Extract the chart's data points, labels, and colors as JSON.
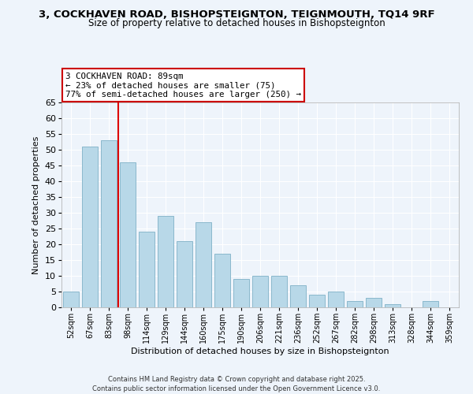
{
  "title_line1": "3, COCKHAVEN ROAD, BISHOPSTEIGNTON, TEIGNMOUTH, TQ14 9RF",
  "title_line2": "Size of property relative to detached houses in Bishopsteignton",
  "xlabel": "Distribution of detached houses by size in Bishopsteignton",
  "ylabel": "Number of detached properties",
  "categories": [
    "52sqm",
    "67sqm",
    "83sqm",
    "98sqm",
    "114sqm",
    "129sqm",
    "144sqm",
    "160sqm",
    "175sqm",
    "190sqm",
    "206sqm",
    "221sqm",
    "236sqm",
    "252sqm",
    "267sqm",
    "282sqm",
    "298sqm",
    "313sqm",
    "328sqm",
    "344sqm",
    "359sqm"
  ],
  "values": [
    5,
    51,
    53,
    46,
    24,
    29,
    21,
    27,
    17,
    9,
    10,
    10,
    7,
    4,
    5,
    2,
    3,
    1,
    0,
    2,
    0
  ],
  "bar_color": "#b8d8e8",
  "bar_edge_color": "#8ab8cc",
  "highlight_bar_index": 2,
  "ylim": [
    0,
    65
  ],
  "yticks": [
    0,
    5,
    10,
    15,
    20,
    25,
    30,
    35,
    40,
    45,
    50,
    55,
    60,
    65
  ],
  "annotation_title": "3 COCKHAVEN ROAD: 89sqm",
  "annotation_line1": "← 23% of detached houses are smaller (75)",
  "annotation_line2": "77% of semi-detached houses are larger (250) →",
  "annotation_box_color": "#ffffff",
  "annotation_box_edge": "#cc0000",
  "red_line_color": "#dd0000",
  "footnote1": "Contains HM Land Registry data © Crown copyright and database right 2025.",
  "footnote2": "Contains public sector information licensed under the Open Government Licence v3.0.",
  "bg_color": "#eef4fb",
  "plot_bg_color": "#eef4fb",
  "grid_color": "#ffffff",
  "title1_fontsize": 9.5,
  "title2_fontsize": 8.5
}
